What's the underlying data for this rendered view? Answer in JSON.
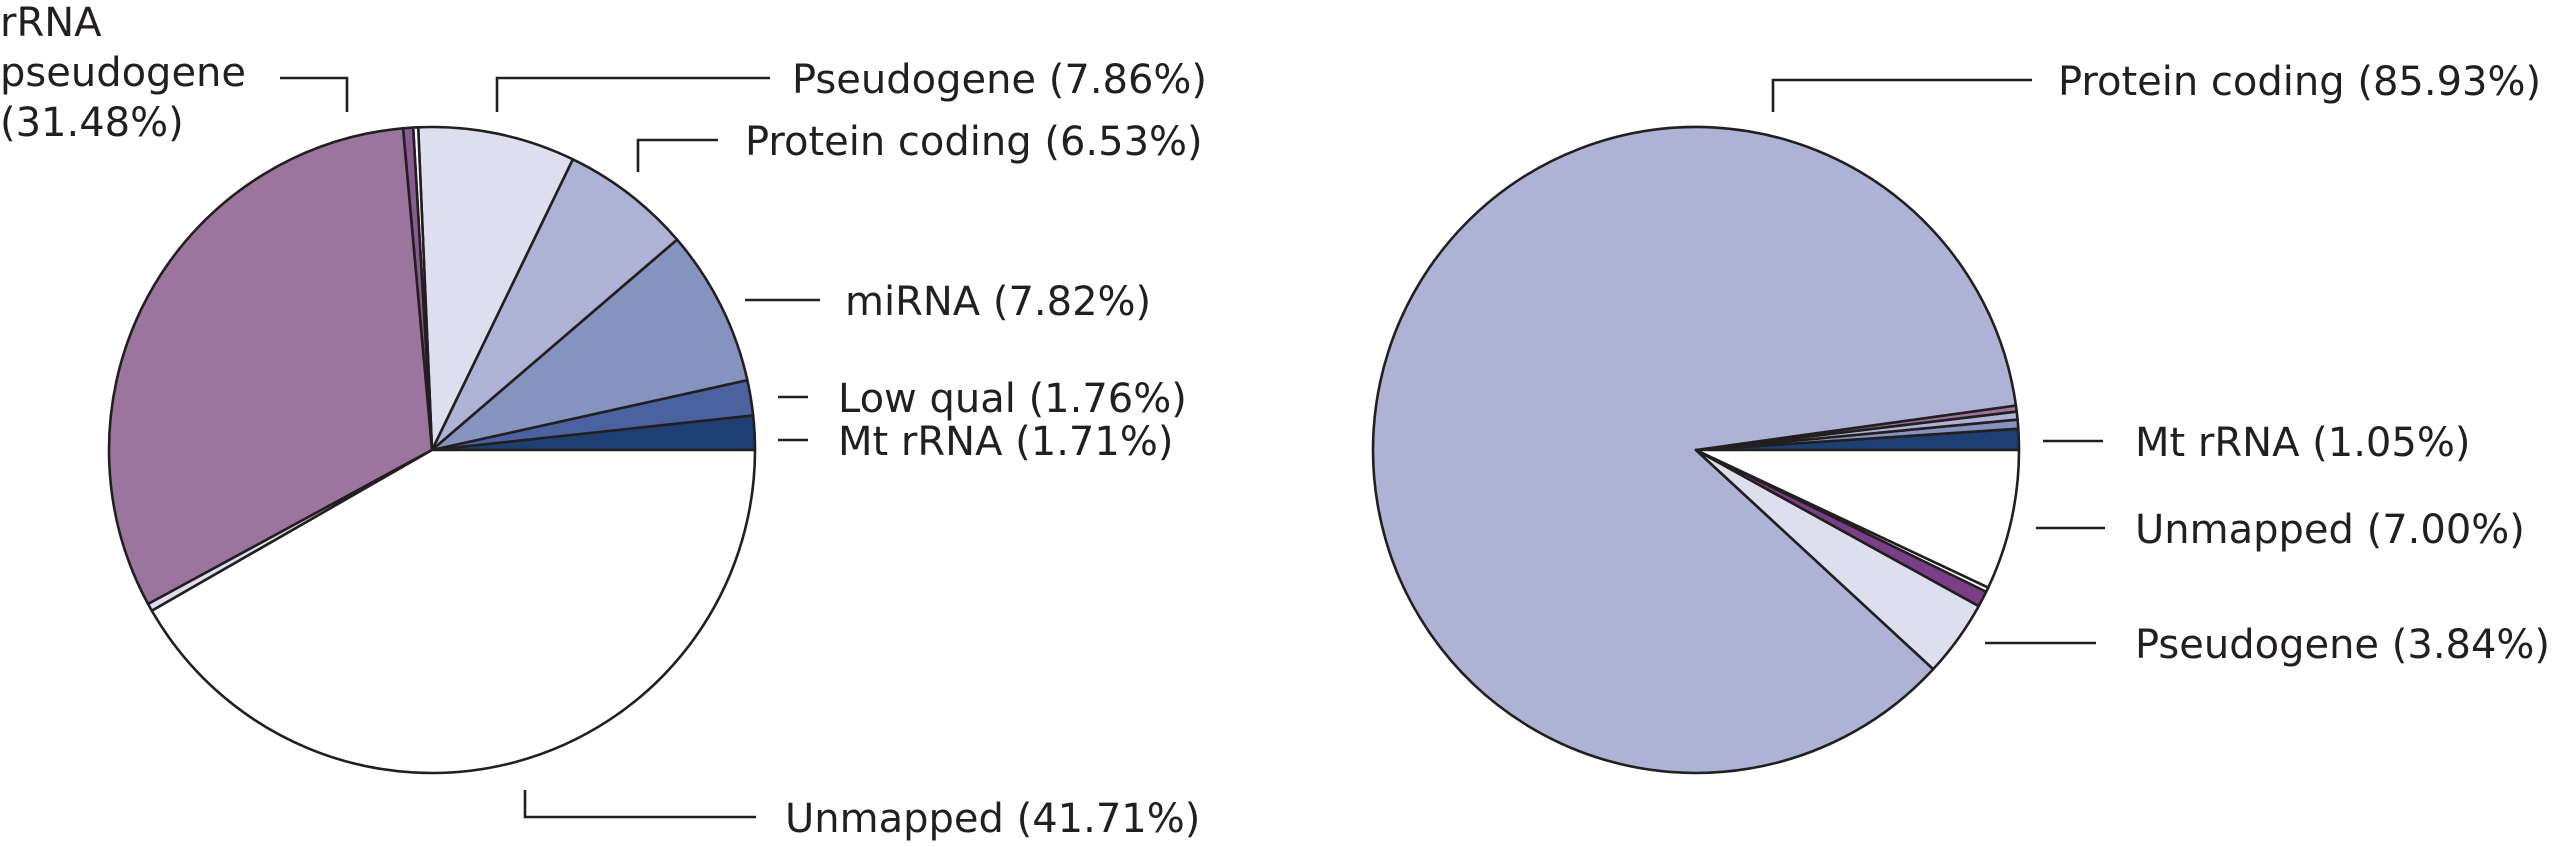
{
  "chart_data": [
    {
      "type": "pie",
      "start": "counterclockwise from 3 o'clock",
      "slices": [
        {
          "label": "Mt rRNA",
          "value": 1.71,
          "color": "#1d3f72"
        },
        {
          "label": "Low qual",
          "value": 1.76,
          "color": "#4a63a0"
        },
        {
          "label": "miRNA",
          "value": 7.82,
          "color": "#8594bf"
        },
        {
          "label": "Protein coding",
          "value": 6.53,
          "color": "#adb3d5"
        },
        {
          "label": "Pseudogene",
          "value": 7.86,
          "color": "#dedfee"
        },
        {
          "label": "",
          "value": 0.25,
          "color": "#ffffff"
        },
        {
          "label": "",
          "value": 0.5,
          "color": "#8a5a92"
        },
        {
          "label": "rRNA pseudogene",
          "value": 31.48,
          "color": "#9c759f"
        },
        {
          "label": "",
          "value": 0.38,
          "color": "#dedfee"
        },
        {
          "label": "Unmapped",
          "value": 41.71,
          "color": "#ffffff"
        }
      ],
      "labels": [
        {
          "id": "pseudogene",
          "lines": [
            "Pseudogene (7.86%)"
          ]
        },
        {
          "id": "protein",
          "lines": [
            "Protein coding (6.53%)"
          ]
        },
        {
          "id": "mirna",
          "lines": [
            "miRNA (7.82%)"
          ]
        },
        {
          "id": "lowqual",
          "lines": [
            "Low qual (1.76%)"
          ]
        },
        {
          "id": "mtrrna",
          "lines": [
            "Mt rRNA (1.71%)"
          ]
        },
        {
          "id": "unmapped",
          "lines": [
            "Unmapped (41.71%)"
          ]
        },
        {
          "id": "rrnapseudo",
          "lines": [
            "rRNA",
            "pseudogene",
            "(31.48%)"
          ]
        }
      ]
    },
    {
      "type": "pie",
      "start": "counterclockwise from 3 o'clock",
      "slices": [
        {
          "label": "Mt rRNA",
          "value": 1.05,
          "color": "#1d3f72"
        },
        {
          "label": "",
          "value": 0.45,
          "color": "#8594bf"
        },
        {
          "label": "",
          "value": 0.4,
          "color": "#adb3d5"
        },
        {
          "label": "",
          "value": 0.3,
          "color": "#9c759f"
        },
        {
          "label": "Protein coding",
          "value": 85.93,
          "color": "#adb3d5"
        },
        {
          "label": "Pseudogene",
          "value": 3.84,
          "color": "#dedfee"
        },
        {
          "label": "",
          "value": 0.8,
          "color": "#7a3f86"
        },
        {
          "label": "",
          "value": 0.23,
          "color": "#ffffff"
        },
        {
          "label": "Unmapped",
          "value": 7.0,
          "color": "#ffffff"
        }
      ],
      "labels": [
        {
          "id": "protein",
          "lines": [
            "Protein coding (85.93%)"
          ]
        },
        {
          "id": "mtrrna",
          "lines": [
            "Mt rRNA (1.05%)"
          ]
        },
        {
          "id": "unmapped",
          "lines": [
            "Unmapped (7.00%)"
          ]
        },
        {
          "id": "pseudogene",
          "lines": [
            "Pseudogene (3.84%)"
          ]
        }
      ]
    }
  ]
}
